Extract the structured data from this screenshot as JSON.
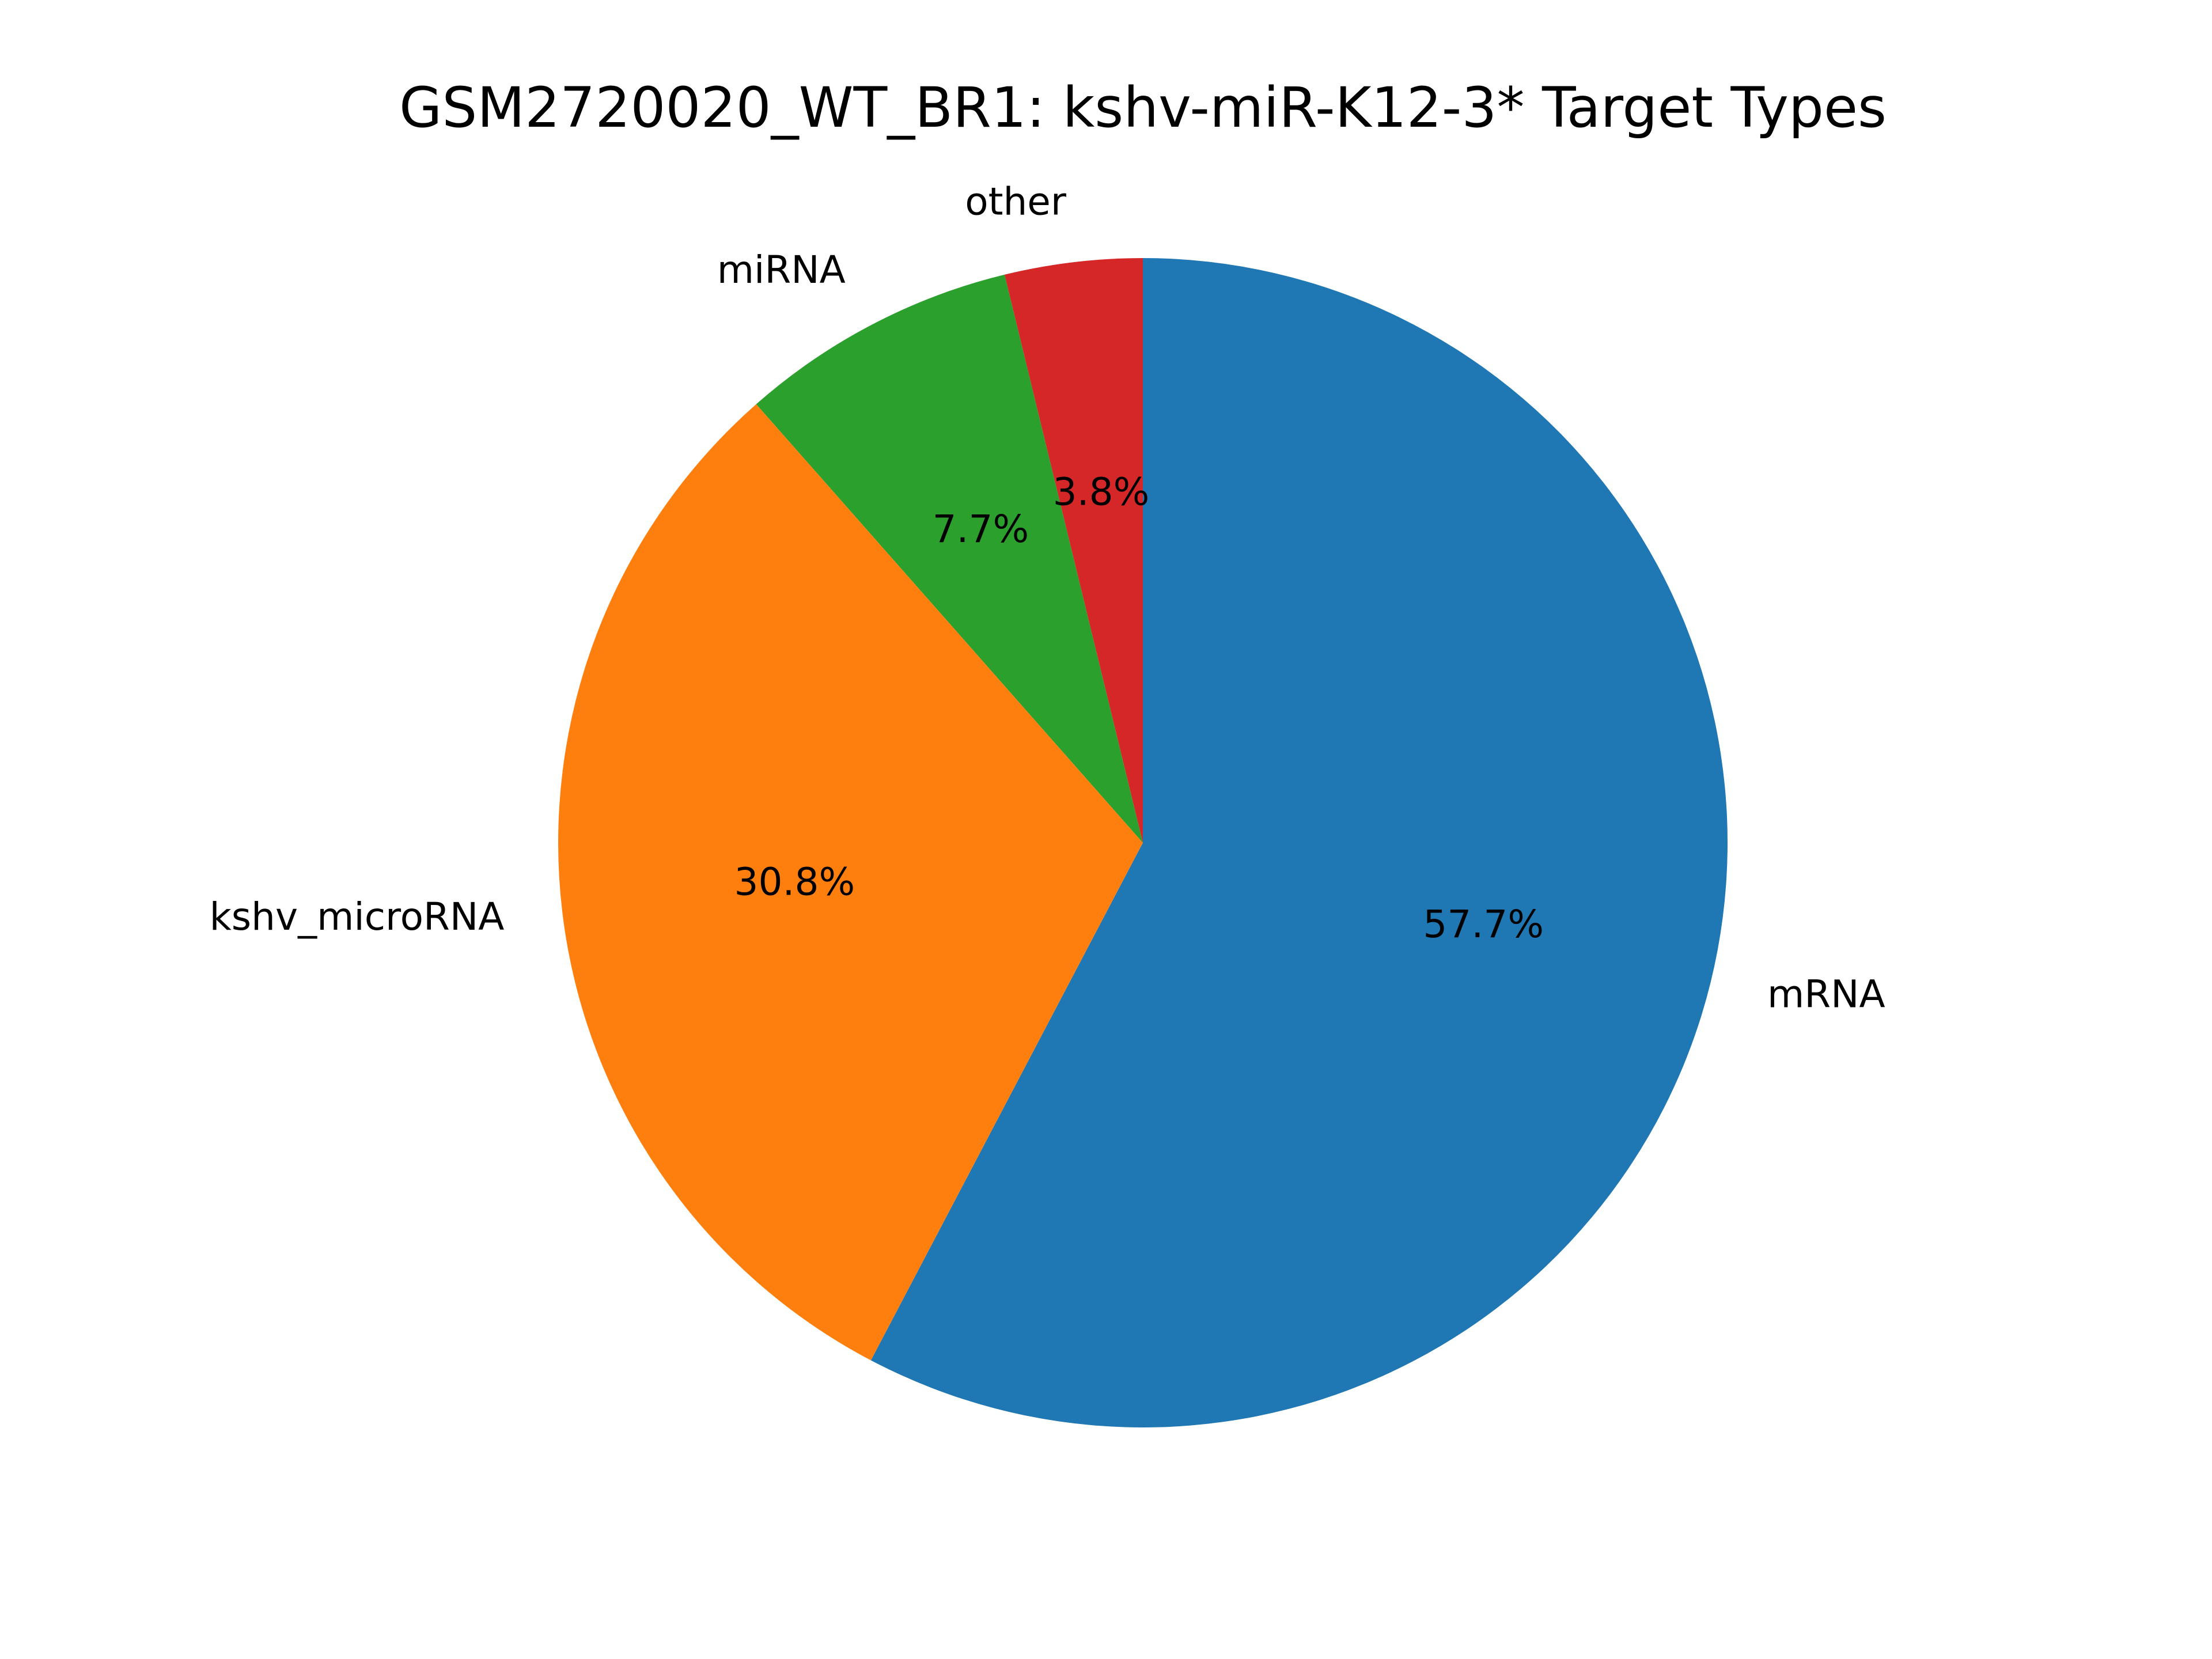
{
  "chart_data": {
    "type": "pie",
    "title": "GSM2720020_WT_BR1: kshv-miR-K12-3* Target Types",
    "start_angle": "top",
    "direction": "clockwise",
    "slices": [
      {
        "label": "mRNA",
        "value": 57.7,
        "pct_label": "57.7%",
        "color": "#1f77b4"
      },
      {
        "label": "kshv_microRNA",
        "value": 30.8,
        "pct_label": "30.8%",
        "color": "#ff7f0e"
      },
      {
        "label": "miRNA",
        "value": 7.7,
        "pct_label": "7.7%",
        "color": "#2ca02c"
      },
      {
        "label": "other",
        "value": 3.8,
        "pct_label": "3.8%",
        "color": "#d62728"
      }
    ]
  }
}
